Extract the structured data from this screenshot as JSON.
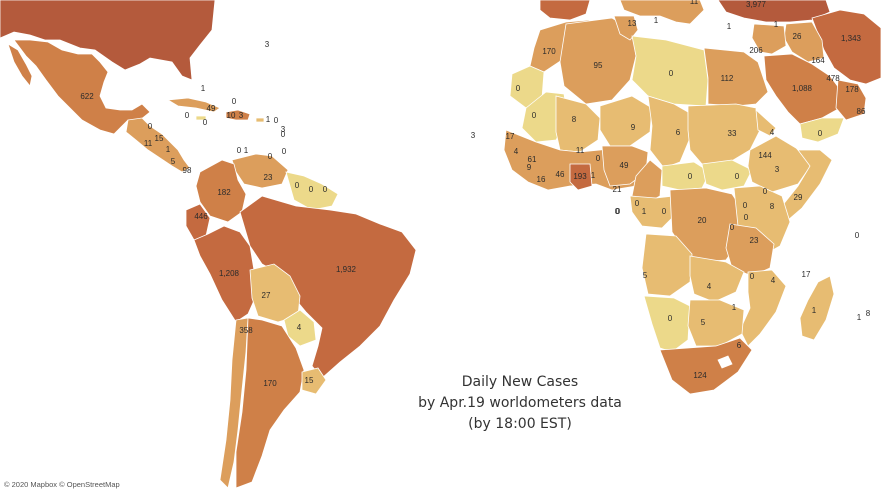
{
  "title": {
    "line1": "Daily New Cases",
    "line2": "by Apr.19 worldometers data",
    "line3": "(by 18:00 EST)"
  },
  "attribution": "© 2020 Mapbox © OpenStreetMap",
  "color_scale": {
    "zero": "#ecd98a",
    "low": "#e7bc72",
    "mid": "#dc9e5c",
    "high": "#cf8048",
    "very_high": "#c46a40",
    "max": "#b45a3c"
  },
  "labels": [
    {
      "id": "usa-east",
      "text": "3"
    },
    {
      "id": "mexico",
      "text": "622"
    },
    {
      "id": "cuba",
      "text": "1"
    },
    {
      "id": "bahamas",
      "text": "0"
    },
    {
      "id": "jamaica",
      "text": "0"
    },
    {
      "id": "cayman",
      "text": "0"
    },
    {
      "id": "haiti",
      "text": "49"
    },
    {
      "id": "haiti-2",
      "text": "10"
    },
    {
      "id": "dominican-rep",
      "text": "3"
    },
    {
      "id": "puerto-rico",
      "text": "1"
    },
    {
      "id": "virgin-islands",
      "text": "0"
    },
    {
      "id": "lesser-antilles-1",
      "text": "0"
    },
    {
      "id": "lesser-antilles-2",
      "text": "3"
    },
    {
      "id": "lesser-antilles-3",
      "text": "0"
    },
    {
      "id": "trinidad",
      "text": "0"
    },
    {
      "id": "aruba",
      "text": "0"
    },
    {
      "id": "curacao",
      "text": "1"
    },
    {
      "id": "belize",
      "text": "0"
    },
    {
      "id": "honduras",
      "text": "15"
    },
    {
      "id": "el-salvador",
      "text": "11"
    },
    {
      "id": "nicaragua",
      "text": "1"
    },
    {
      "id": "costa-rica",
      "text": "5"
    },
    {
      "id": "panama",
      "text": "98"
    },
    {
      "id": "venezuela",
      "text": "23"
    },
    {
      "id": "guyana",
      "text": "0"
    },
    {
      "id": "suriname",
      "text": "0"
    },
    {
      "id": "french-guiana",
      "text": "0"
    },
    {
      "id": "colombia",
      "text": "182"
    },
    {
      "id": "ecuador",
      "text": "446"
    },
    {
      "id": "peru",
      "text": "1,208"
    },
    {
      "id": "brazil",
      "text": "1,932"
    },
    {
      "id": "bolivia",
      "text": "27"
    },
    {
      "id": "paraguay",
      "text": "4"
    },
    {
      "id": "chile",
      "text": "358"
    },
    {
      "id": "argentina",
      "text": "170"
    },
    {
      "id": "uruguay",
      "text": "15"
    },
    {
      "id": "europe-1",
      "text": "13"
    },
    {
      "id": "europe-2",
      "text": "1"
    },
    {
      "id": "europe-3",
      "text": "11"
    },
    {
      "id": "turkey",
      "text": "3,977"
    },
    {
      "id": "cyprus",
      "text": "1"
    },
    {
      "id": "israel",
      "text": "206"
    },
    {
      "id": "jordan",
      "text": "1"
    },
    {
      "id": "iraq",
      "text": "26"
    },
    {
      "id": "iran",
      "text": "1,343"
    },
    {
      "id": "kuwait",
      "text": "164"
    },
    {
      "id": "qatar",
      "text": "478"
    },
    {
      "id": "bahrain",
      "text": "178"
    },
    {
      "id": "oman",
      "text": "86"
    },
    {
      "id": "saudi-arabia",
      "text": "1,088"
    },
    {
      "id": "yemen",
      "text": "0"
    },
    {
      "id": "morocco",
      "text": "170"
    },
    {
      "id": "algeria",
      "text": "95"
    },
    {
      "id": "libya",
      "text": "0"
    },
    {
      "id": "egypt",
      "text": "112"
    },
    {
      "id": "western-sahara",
      "text": "0"
    },
    {
      "id": "mauritania",
      "text": "0"
    },
    {
      "id": "mali",
      "text": "8"
    },
    {
      "id": "niger",
      "text": "9"
    },
    {
      "id": "chad",
      "text": "6"
    },
    {
      "id": "sudan",
      "text": "33"
    },
    {
      "id": "eritrea",
      "text": "4"
    },
    {
      "id": "cape-verde",
      "text": "3"
    },
    {
      "id": "senegal",
      "text": "17"
    },
    {
      "id": "gambia",
      "text": "4"
    },
    {
      "id": "guinea-bissau",
      "text": "9"
    },
    {
      "id": "guinea",
      "text": "61"
    },
    {
      "id": "sierra-leone",
      "text": "16"
    },
    {
      "id": "liberia",
      "text": "46"
    },
    {
      "id": "burkina-faso",
      "text": "11"
    },
    {
      "id": "ghana",
      "text": "193"
    },
    {
      "id": "togo",
      "text": "1"
    },
    {
      "id": "benin",
      "text": "0"
    },
    {
      "id": "nigeria",
      "text": "49"
    },
    {
      "id": "cameroon",
      "text": "21"
    },
    {
      "id": "car",
      "text": "0"
    },
    {
      "id": "south-sudan",
      "text": "0"
    },
    {
      "id": "ethiopia",
      "text": "144"
    },
    {
      "id": "djibouti",
      "text": "0"
    },
    {
      "id": "somalia",
      "text": "3"
    },
    {
      "id": "equatorial-guinea",
      "text": "0"
    },
    {
      "id": "sao-tome",
      "text": "0"
    },
    {
      "id": "gabon",
      "text": "1"
    },
    {
      "id": "congo",
      "text": "0"
    },
    {
      "id": "dr-congo",
      "text": "20"
    },
    {
      "id": "uganda",
      "text": "0"
    },
    {
      "id": "kenya",
      "text": "8"
    },
    {
      "id": "rwanda",
      "text": "0"
    },
    {
      "id": "burundi",
      "text": "0"
    },
    {
      "id": "tanzania",
      "text": "29"
    },
    {
      "id": "tanzania-2",
      "text": "23"
    },
    {
      "id": "angola",
      "text": "5"
    },
    {
      "id": "zambia",
      "text": "4"
    },
    {
      "id": "malawi",
      "text": "0"
    },
    {
      "id": "mozambique",
      "text": "4"
    },
    {
      "id": "zimbabwe",
      "text": "1"
    },
    {
      "id": "namibia",
      "text": "0"
    },
    {
      "id": "botswana",
      "text": "5"
    },
    {
      "id": "south-africa",
      "text": "124"
    },
    {
      "id": "eswatini",
      "text": "6"
    },
    {
      "id": "madagascar",
      "text": "1"
    },
    {
      "id": "comoros",
      "text": "17"
    },
    {
      "id": "seychelles",
      "text": "0"
    },
    {
      "id": "mauritius",
      "text": "1"
    },
    {
      "id": "reunion",
      "text": "8"
    },
    {
      "id": "st-helena",
      "text": "0"
    }
  ]
}
